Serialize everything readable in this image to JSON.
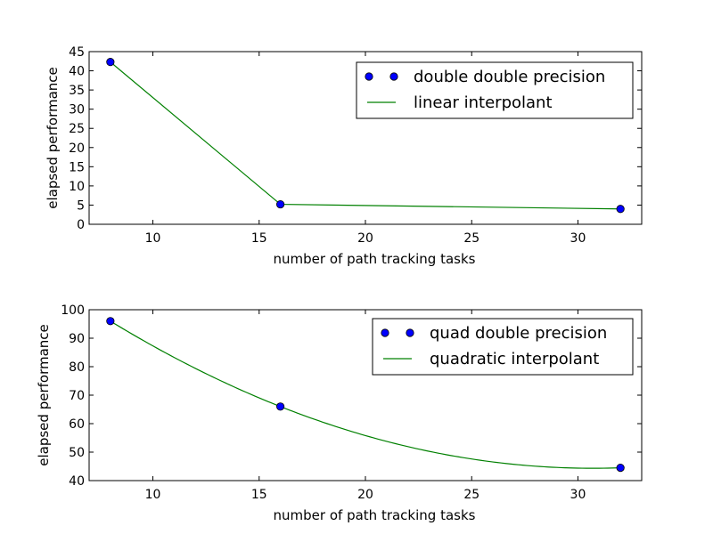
{
  "chart_data": [
    {
      "type": "line",
      "xlabel": "number of path tracking tasks",
      "ylabel": "elapsed performance",
      "xlim": [
        7,
        33
      ],
      "ylim": [
        0,
        45
      ],
      "xticks": [
        "10",
        "15",
        "20",
        "25",
        "30"
      ],
      "yticks": [
        "0",
        "5",
        "10",
        "15",
        "20",
        "25",
        "30",
        "35",
        "40",
        "45"
      ],
      "grid": false,
      "legend_position": "top-right",
      "series": [
        {
          "name": "double double precision",
          "style": "markers",
          "color": "#0000ff",
          "x": [
            8,
            16,
            32
          ],
          "y": [
            42.3,
            5.2,
            4.0
          ]
        },
        {
          "name": "linear interpolant",
          "style": "line",
          "color": "#008000",
          "x": [
            8,
            16,
            32
          ],
          "y": [
            42.3,
            5.2,
            4.0
          ]
        }
      ]
    },
    {
      "type": "line",
      "xlabel": "number of path tracking tasks",
      "ylabel": "elapsed performance",
      "xlim": [
        7,
        33
      ],
      "ylim": [
        40,
        100
      ],
      "xticks": [
        "10",
        "15",
        "20",
        "25",
        "30"
      ],
      "yticks": [
        "40",
        "50",
        "60",
        "70",
        "80",
        "90",
        "100"
      ],
      "grid": false,
      "legend_position": "top-right",
      "series": [
        {
          "name": "quad double precision",
          "style": "markers",
          "color": "#0000ff",
          "x": [
            8,
            16,
            32
          ],
          "y": [
            96,
            66,
            44.5
          ]
        },
        {
          "name": "quadratic interpolant",
          "style": "quadratic-curve",
          "color": "#008000",
          "x": [
            8,
            16,
            32
          ],
          "y": [
            96,
            66,
            44.5
          ]
        }
      ]
    }
  ]
}
